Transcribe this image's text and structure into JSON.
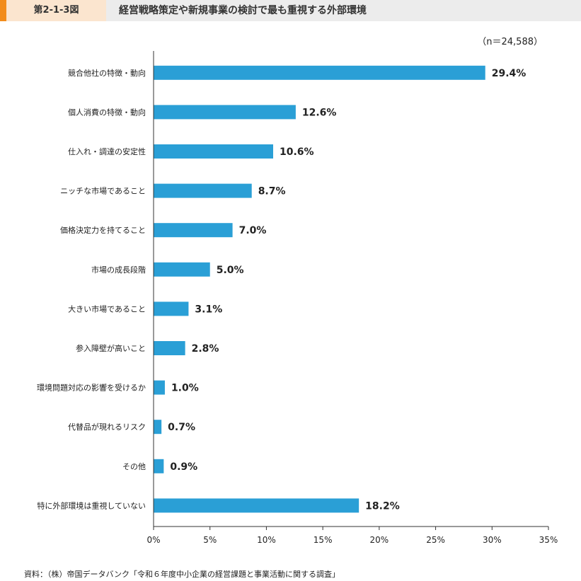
{
  "header": {
    "figure_number": "第2-1-3図",
    "title": "経営戦略策定や新規事業の検討で最も重視する外部環境"
  },
  "sample_note": "（n＝24,588）",
  "source": "資料：（株）帝国データバンク「令和６年度中小企業の経営課題と事業活動に関する調査」",
  "colors": {
    "bar": "#2a9fd6",
    "accent": "#f28c1b",
    "badge_bg": "#fbe5cf",
    "header_bg": "#ececec"
  },
  "chart_data": {
    "type": "bar",
    "orientation": "horizontal",
    "categories": [
      "競合他社の特徴・動向",
      "個人消費の特徴・動向",
      "仕入れ・調達の安定性",
      "ニッチな市場であること",
      "価格決定力を持てること",
      "市場の成長段階",
      "大きい市場であること",
      "参入障壁が高いこと",
      "環境問題対応の影響を受けるか",
      "代替品が現れるリスク",
      "その他",
      "特に外部環境は重視していない"
    ],
    "values": [
      29.4,
      12.6,
      10.6,
      8.7,
      7.0,
      5.0,
      3.1,
      2.8,
      1.0,
      0.7,
      0.9,
      18.2
    ],
    "value_labels": [
      "29.4%",
      "12.6%",
      "10.6%",
      "8.7%",
      "7.0%",
      "5.0%",
      "3.1%",
      "2.8%",
      "1.0%",
      "0.7%",
      "0.9%",
      "18.2%"
    ],
    "xlim": [
      0,
      35
    ],
    "xticks": [
      0,
      5,
      10,
      15,
      20,
      25,
      30,
      35
    ],
    "xtick_labels": [
      "0%",
      "5%",
      "10%",
      "15%",
      "20%",
      "25%",
      "30%",
      "35%"
    ],
    "grid": false
  }
}
